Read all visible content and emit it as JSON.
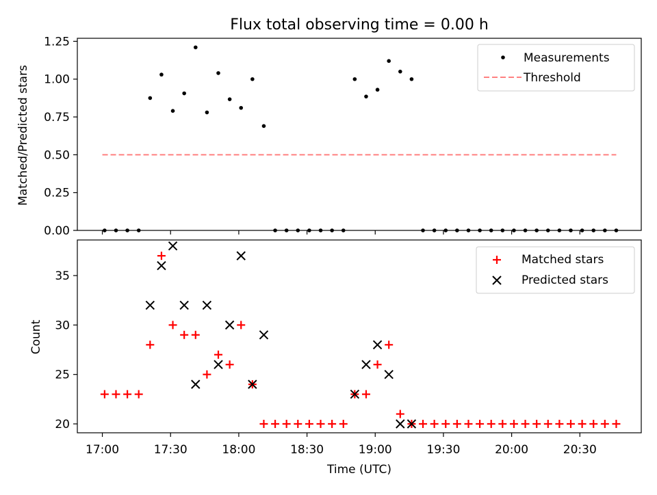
{
  "chart_data": {
    "title": "Flux total observing time = 0.00 h",
    "xlabel": "Time (UTC)",
    "x_unit": "minutes after 17:00 UTC",
    "xlim": [
      -11,
      237
    ],
    "xticks": [
      {
        "value": 0,
        "label": "17:00"
      },
      {
        "value": 30,
        "label": "17:30"
      },
      {
        "value": 60,
        "label": "18:00"
      },
      {
        "value": 90,
        "label": "18:30"
      },
      {
        "value": 120,
        "label": "19:00"
      },
      {
        "value": 150,
        "label": "19:30"
      },
      {
        "value": 180,
        "label": "20:00"
      },
      {
        "value": 210,
        "label": "20:30"
      }
    ],
    "x": [
      1,
      6,
      11,
      16,
      21,
      26,
      31,
      36,
      41,
      46,
      51,
      56,
      61,
      66,
      71,
      76,
      81,
      86,
      91,
      96,
      101,
      106,
      111,
      116,
      121,
      126,
      131,
      136,
      141,
      146,
      151,
      156,
      161,
      166,
      171,
      176,
      181,
      186,
      191,
      196,
      201,
      206,
      211,
      216,
      221,
      226
    ],
    "panels": [
      {
        "type": "scatter",
        "ylabel": "Matched/Predicted stars",
        "ylim": [
          0,
          1.27
        ],
        "yticks": [
          {
            "value": 0,
            "label": "0.00"
          },
          {
            "value": 0.25,
            "label": "0.25"
          },
          {
            "value": 0.5,
            "label": "0.50"
          },
          {
            "value": 0.75,
            "label": "0.75"
          },
          {
            "value": 1.0,
            "label": "1.00"
          },
          {
            "value": 1.25,
            "label": "1.25"
          }
        ],
        "legend_position": "top-right",
        "series": [
          {
            "name": "Measurements",
            "marker": "dot",
            "color": "#000000",
            "values": [
              0,
              0,
              0,
              0,
              0.875,
              1.03,
              0.79,
              0.906,
              1.21,
              0.78,
              1.04,
              0.867,
              0.81,
              1.0,
              0.69,
              0,
              0,
              0,
              0,
              0,
              0,
              0,
              1.0,
              0.885,
              0.93,
              1.12,
              1.05,
              1.0,
              0,
              0,
              0,
              0,
              0,
              0,
              0,
              0,
              0,
              0,
              0,
              0,
              0,
              0,
              0,
              0,
              0,
              0
            ]
          },
          {
            "name": "Threshold",
            "marker": "dashed-line",
            "color": "#ff8080",
            "values": [
              0.5,
              0.5
            ],
            "x_range": [
              0,
              226
            ]
          }
        ]
      },
      {
        "type": "scatter",
        "ylabel": "Count",
        "ylim": [
          19.1,
          38.6
        ],
        "yticks": [
          {
            "value": 20,
            "label": "20"
          },
          {
            "value": 25,
            "label": "25"
          },
          {
            "value": 30,
            "label": "30"
          },
          {
            "value": 35,
            "label": "35"
          }
        ],
        "legend_position": "top-right",
        "series": [
          {
            "name": "Matched stars",
            "marker": "plus",
            "color": "#ff0000",
            "values": [
              23,
              23,
              23,
              23,
              28,
              37,
              30,
              29,
              29,
              25,
              27,
              26,
              30,
              24,
              20,
              20,
              20,
              20,
              20,
              20,
              20,
              20,
              23,
              23,
              26,
              28,
              21,
              20,
              20,
              20,
              20,
              20,
              20,
              20,
              20,
              20,
              20,
              20,
              20,
              20,
              20,
              20,
              20,
              20,
              20,
              20
            ]
          },
          {
            "name": "Predicted stars",
            "marker": "x",
            "color": "#000000",
            "values": [
              null,
              null,
              null,
              null,
              32,
              36,
              38,
              32,
              24,
              32,
              26,
              30,
              37,
              24,
              29,
              null,
              null,
              null,
              null,
              null,
              null,
              null,
              23,
              26,
              28,
              25,
              20,
              20,
              null,
              null,
              null,
              null,
              null,
              null,
              null,
              null,
              null,
              null,
              null,
              null,
              null,
              null,
              null,
              null,
              null,
              null
            ]
          }
        ]
      }
    ]
  }
}
